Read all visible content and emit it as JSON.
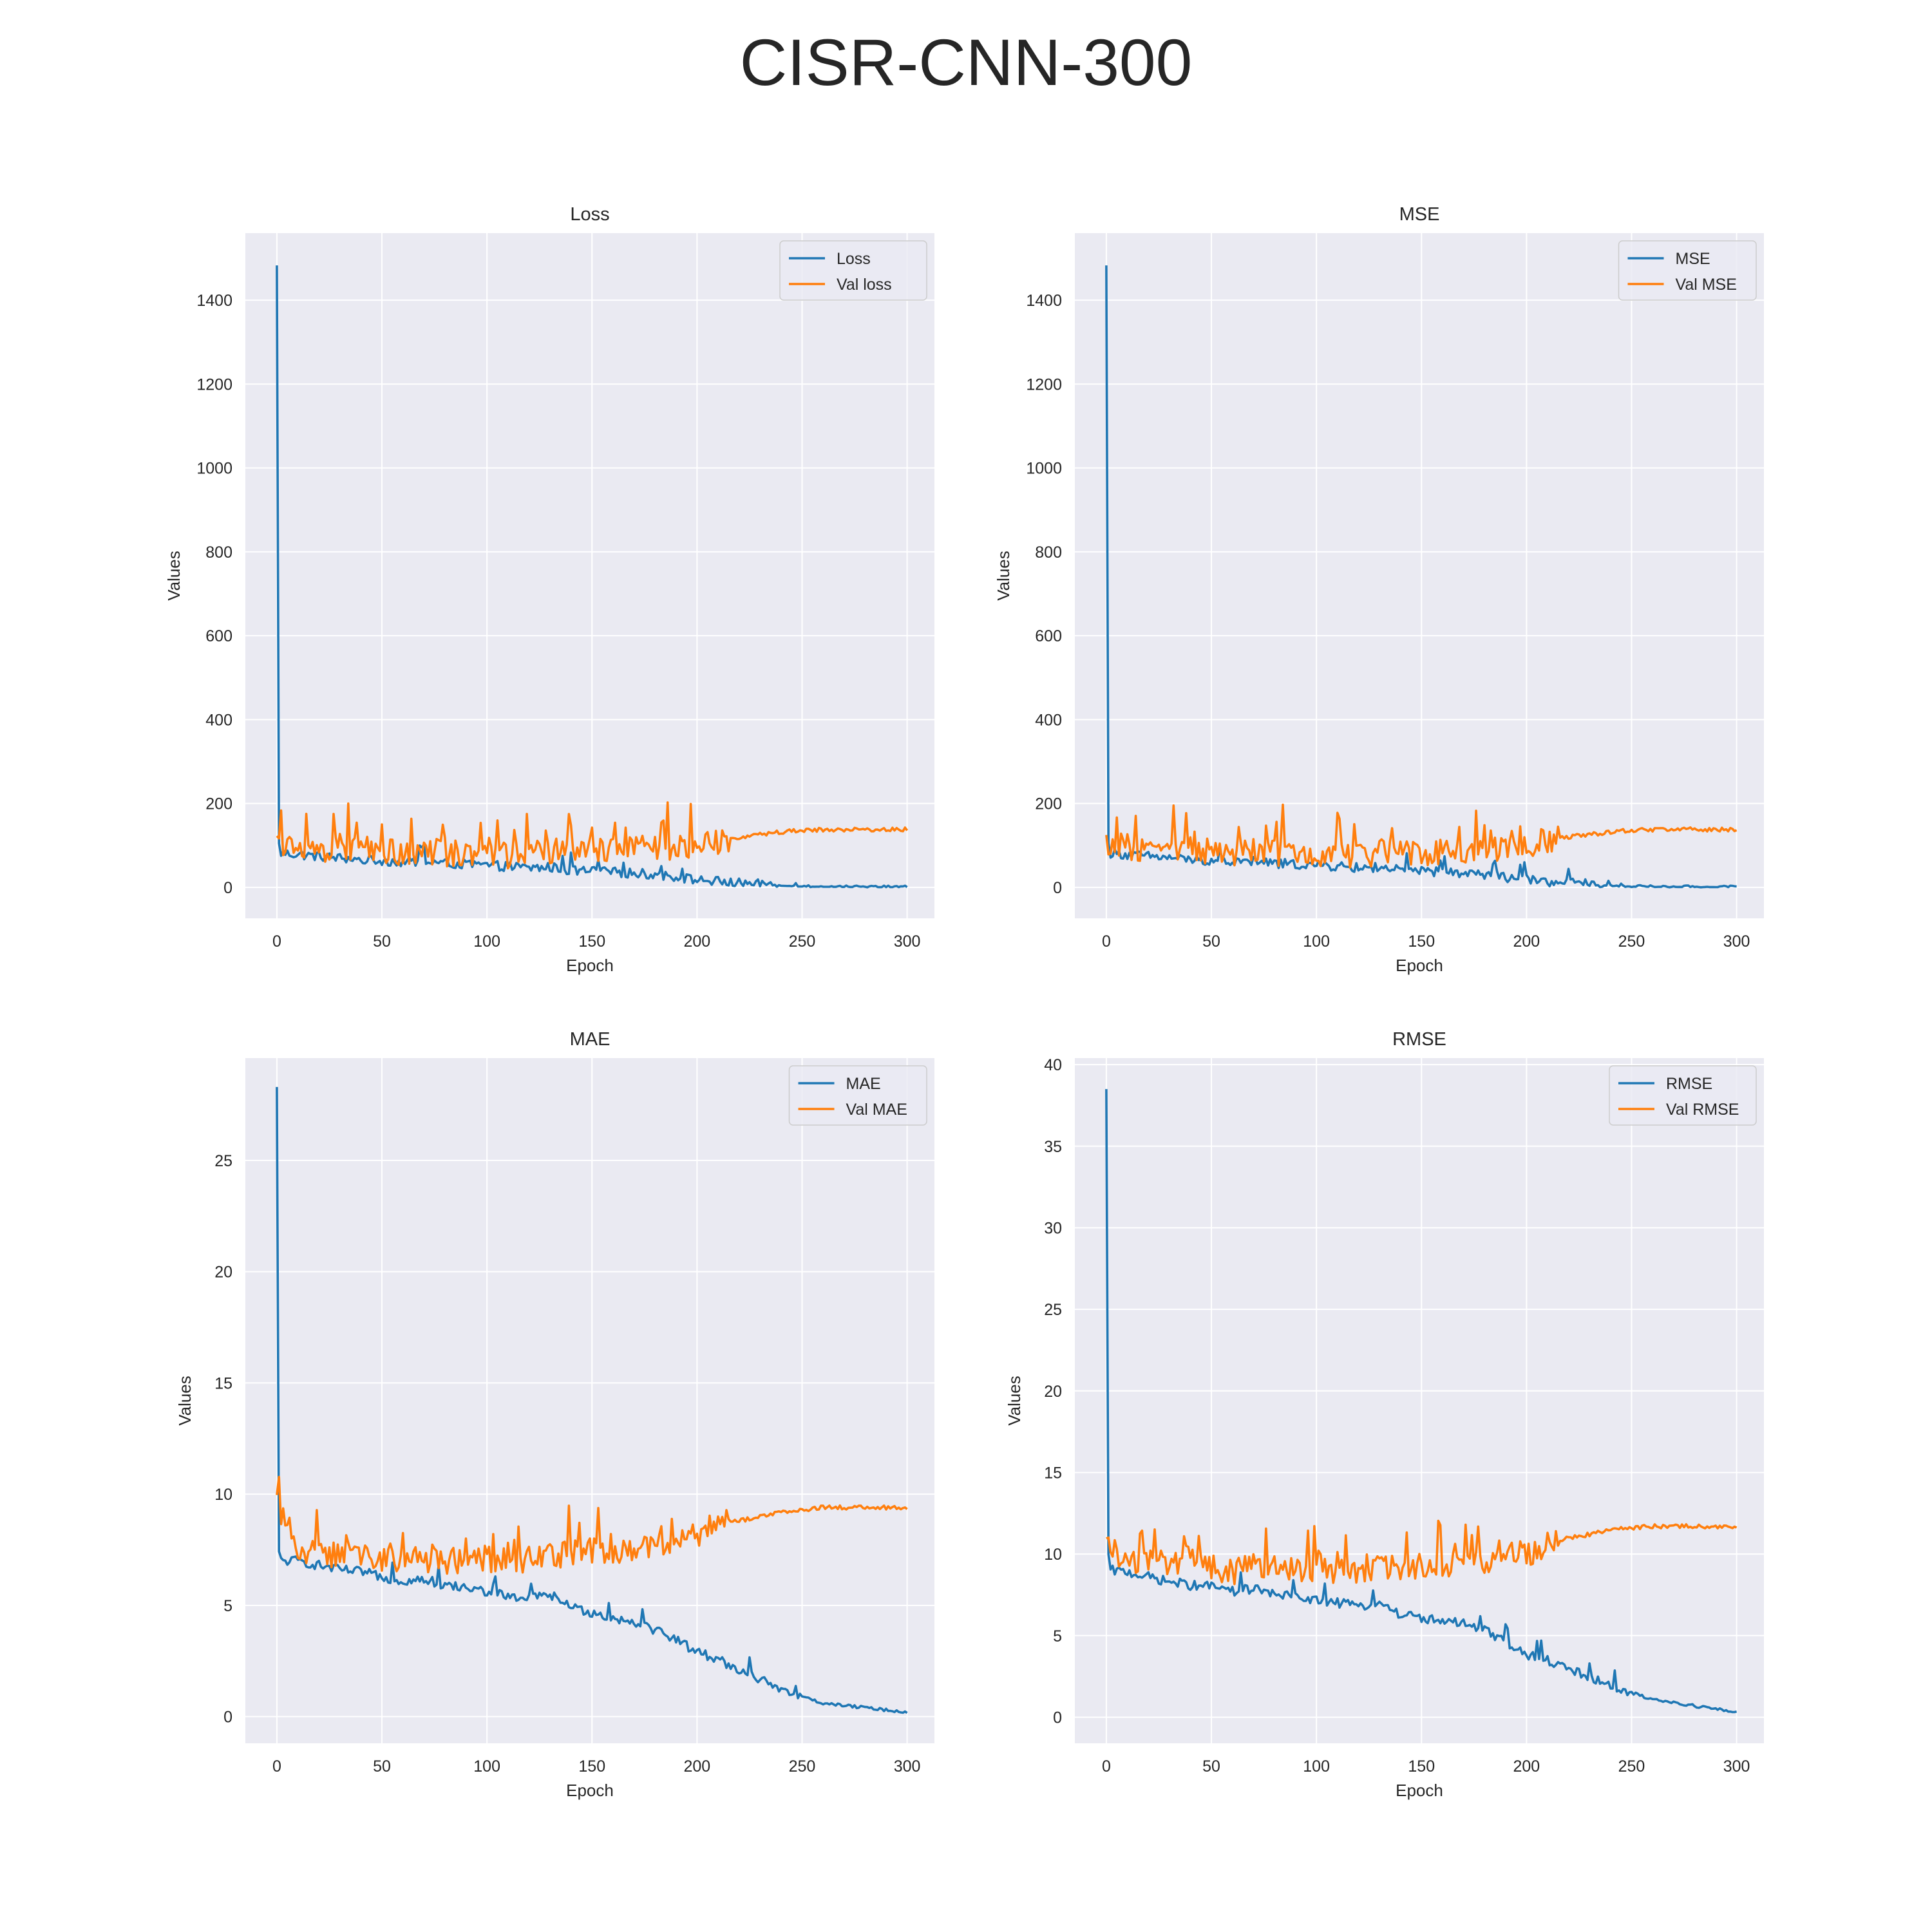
{
  "figure": {
    "title": "CISR-CNN-300",
    "colors": {
      "background": "#ffffff",
      "axes_face": "#eaeaf2",
      "grid": "#ffffff",
      "text": "#262626",
      "train": "#1f77b4",
      "val": "#ff7f0e"
    }
  },
  "chart_data": [
    {
      "type": "line",
      "title": "Loss",
      "xlabel": "Epoch",
      "ylabel": "Values",
      "xlim": [
        -15,
        313
      ],
      "ylim": [
        -74,
        1560
      ],
      "xticks": [
        0,
        50,
        100,
        150,
        200,
        250,
        300
      ],
      "yticks": [
        0,
        200,
        400,
        600,
        800,
        1000,
        1200,
        1400
      ],
      "grid": true,
      "legend": "top-right",
      "series": [
        {
          "name": "Loss",
          "color": "#1f77b4",
          "start": 1483,
          "x": [
            1,
            2,
            10,
            20,
            30,
            40,
            50,
            60,
            70,
            80,
            90,
            100,
            110,
            120,
            130,
            140,
            150,
            160,
            170,
            180,
            190,
            200,
            210,
            220,
            230,
            240,
            250,
            260,
            270,
            280,
            290,
            300
          ],
          "values": [
            100,
            82,
            78,
            74,
            70,
            66,
            64,
            60,
            62,
            57,
            55,
            52,
            50,
            46,
            48,
            40,
            38,
            36,
            34,
            30,
            24,
            18,
            14,
            10,
            7,
            4,
            2,
            1.5,
            1,
            0.8,
            0.6,
            0.5
          ]
        },
        {
          "name": "Val loss",
          "color": "#ff7f0e",
          "x": [
            0,
            10,
            20,
            30,
            40,
            50,
            60,
            70,
            80,
            90,
            100,
            110,
            120,
            130,
            140,
            150,
            160,
            170,
            180,
            190,
            200,
            210,
            220,
            230,
            240,
            250,
            260,
            270,
            280,
            290,
            300
          ],
          "values": [
            108,
            95,
            90,
            88,
            95,
            84,
            80,
            86,
            82,
            80,
            82,
            78,
            80,
            83,
            85,
            84,
            88,
            90,
            92,
            95,
            100,
            112,
            120,
            126,
            132,
            136,
            137,
            138,
            138,
            138,
            138
          ]
        }
      ]
    },
    {
      "type": "line",
      "title": "MSE",
      "xlabel": "Epoch",
      "ylabel": "Values",
      "xlim": [
        -15,
        313
      ],
      "ylim": [
        -74,
        1560
      ],
      "xticks": [
        0,
        50,
        100,
        150,
        200,
        250,
        300
      ],
      "yticks": [
        0,
        200,
        400,
        600,
        800,
        1000,
        1200,
        1400
      ],
      "grid": true,
      "legend": "top-right",
      "series": [
        {
          "name": "MSE",
          "color": "#1f77b4",
          "start": 1483,
          "x": [
            1,
            2,
            10,
            20,
            30,
            40,
            50,
            60,
            70,
            80,
            90,
            100,
            110,
            120,
            130,
            140,
            150,
            160,
            170,
            180,
            190,
            200,
            210,
            220,
            230,
            240,
            250,
            260,
            270,
            280,
            290,
            300
          ],
          "values": [
            100,
            82,
            78,
            74,
            70,
            66,
            64,
            60,
            62,
            57,
            55,
            52,
            50,
            46,
            48,
            40,
            38,
            36,
            34,
            30,
            24,
            18,
            14,
            10,
            7,
            4,
            2,
            1.5,
            1,
            0.8,
            0.6,
            0.5
          ]
        },
        {
          "name": "Val MSE",
          "color": "#ff7f0e",
          "x": [
            0,
            10,
            20,
            30,
            40,
            50,
            60,
            70,
            80,
            90,
            100,
            110,
            120,
            130,
            140,
            150,
            160,
            170,
            180,
            190,
            200,
            210,
            220,
            230,
            240,
            250,
            260,
            270,
            280,
            290,
            300
          ],
          "values": [
            108,
            95,
            90,
            88,
            95,
            84,
            80,
            86,
            82,
            80,
            82,
            78,
            80,
            83,
            85,
            84,
            88,
            90,
            92,
            95,
            100,
            112,
            120,
            126,
            132,
            136,
            137,
            138,
            138,
            138,
            138
          ]
        }
      ]
    },
    {
      "type": "line",
      "title": "MAE",
      "xlabel": "Epoch",
      "ylabel": "Values",
      "xlim": [
        -15,
        313
      ],
      "ylim": [
        -1.2,
        29.6
      ],
      "xticks": [
        0,
        50,
        100,
        150,
        200,
        250,
        300
      ],
      "yticks": [
        0,
        5,
        10,
        15,
        20,
        25
      ],
      "grid": true,
      "legend": "top-right",
      "series": [
        {
          "name": "MAE",
          "color": "#1f77b4",
          "start": 28.3,
          "x": [
            1,
            2,
            10,
            20,
            30,
            40,
            50,
            60,
            70,
            80,
            90,
            100,
            110,
            120,
            130,
            140,
            150,
            160,
            170,
            180,
            190,
            200,
            210,
            220,
            230,
            240,
            250,
            260,
            270,
            280,
            290,
            300
          ],
          "values": [
            7.3,
            7.0,
            7.0,
            6.8,
            6.6,
            6.5,
            6.3,
            6.1,
            6.2,
            5.9,
            5.8,
            5.6,
            5.4,
            5.3,
            5.5,
            4.9,
            4.7,
            4.4,
            4.3,
            3.9,
            3.5,
            2.9,
            2.6,
            2.1,
            1.7,
            1.1,
            0.9,
            0.6,
            0.5,
            0.4,
            0.3,
            0.2
          ]
        },
        {
          "name": "Val MAE",
          "color": "#ff7f0e",
          "x": [
            0,
            10,
            20,
            30,
            40,
            50,
            60,
            70,
            80,
            90,
            100,
            110,
            120,
            130,
            140,
            150,
            160,
            170,
            180,
            190,
            200,
            210,
            220,
            230,
            240,
            250,
            260,
            270,
            280,
            290,
            300
          ],
          "values": [
            9.6,
            7.5,
            7.3,
            7.2,
            7.4,
            7.0,
            6.9,
            7.1,
            7.0,
            7.0,
            7.1,
            7.0,
            7.1,
            7.2,
            7.3,
            7.4,
            7.5,
            7.6,
            7.7,
            7.9,
            8.2,
            8.6,
            8.8,
            9.0,
            9.2,
            9.3,
            9.4,
            9.4,
            9.4,
            9.4,
            9.4
          ]
        }
      ]
    },
    {
      "type": "line",
      "title": "RMSE",
      "xlabel": "Epoch",
      "ylabel": "Values",
      "xlim": [
        -15,
        313
      ],
      "ylim": [
        -1.6,
        40.4
      ],
      "xticks": [
        0,
        50,
        100,
        150,
        200,
        250,
        300
      ],
      "yticks": [
        0,
        5,
        10,
        15,
        20,
        25,
        30,
        35,
        40
      ],
      "grid": true,
      "legend": "top-right",
      "series": [
        {
          "name": "RMSE",
          "color": "#1f77b4",
          "start": 38.5,
          "x": [
            1,
            2,
            10,
            20,
            30,
            40,
            50,
            60,
            70,
            80,
            90,
            100,
            110,
            120,
            130,
            140,
            150,
            160,
            170,
            180,
            190,
            200,
            210,
            220,
            230,
            240,
            250,
            260,
            270,
            280,
            290,
            300
          ],
          "values": [
            9.8,
            9.0,
            8.9,
            8.6,
            8.3,
            8.1,
            8.0,
            7.7,
            7.9,
            7.5,
            7.4,
            7.2,
            7.0,
            6.8,
            7.0,
            6.3,
            6.1,
            5.9,
            5.7,
            5.3,
            4.6,
            3.8,
            3.5,
            2.9,
            2.5,
            1.9,
            1.5,
            1.1,
            0.9,
            0.7,
            0.5,
            0.3
          ]
        },
        {
          "name": "Val RMSE",
          "color": "#ff7f0e",
          "x": [
            0,
            10,
            20,
            30,
            40,
            50,
            60,
            70,
            80,
            90,
            100,
            110,
            120,
            130,
            140,
            150,
            160,
            170,
            180,
            190,
            200,
            210,
            220,
            230,
            240,
            250,
            260,
            270,
            280,
            290,
            300
          ],
          "values": [
            10.4,
            9.8,
            9.5,
            9.4,
            9.8,
            9.2,
            8.9,
            9.3,
            9.1,
            9.0,
            9.1,
            8.9,
            9.0,
            9.1,
            9.2,
            9.2,
            9.4,
            9.5,
            9.6,
            9.8,
            10.0,
            10.6,
            11.0,
            11.2,
            11.5,
            11.6,
            11.7,
            11.7,
            11.7,
            11.7,
            11.7
          ]
        }
      ]
    }
  ]
}
